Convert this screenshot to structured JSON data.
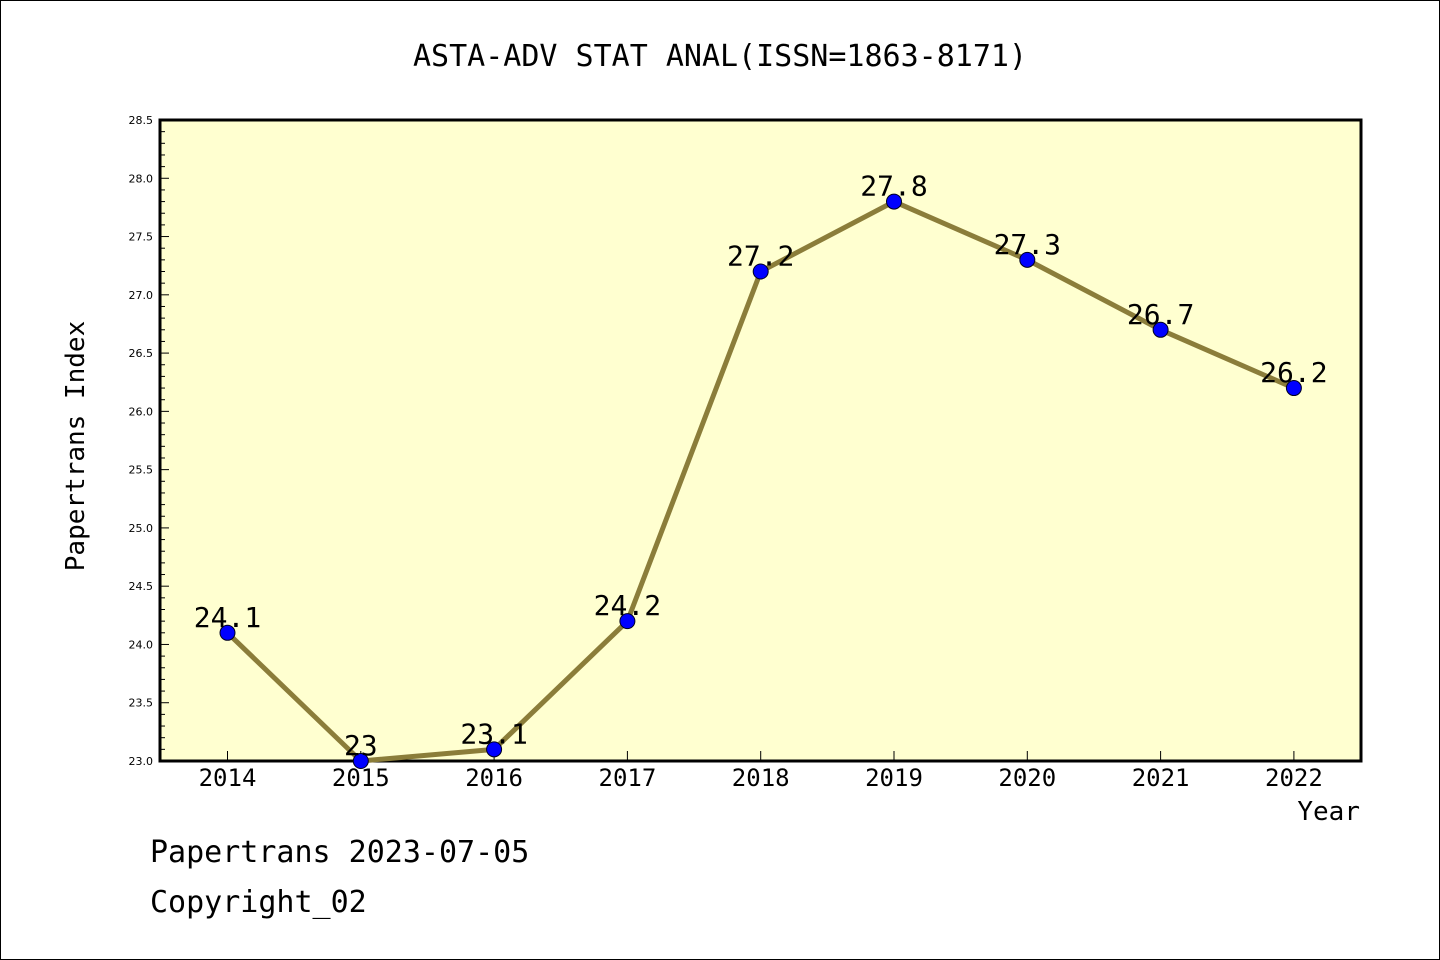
{
  "chart_data": {
    "type": "line",
    "title": "ASTA-ADV STAT ANAL(ISSN=1863-8171)",
    "xlabel": "Year",
    "ylabel": "Papertrans Index",
    "categories": [
      "2014",
      "2015",
      "2016",
      "2017",
      "2018",
      "2019",
      "2020",
      "2021",
      "2022"
    ],
    "series": [
      {
        "values": [
          24.1,
          23.0,
          23.1,
          24.2,
          27.2,
          27.8,
          27.3,
          26.7,
          26.2
        ],
        "labels": [
          "24.1",
          "23",
          "23.1",
          "24.2",
          "27.2",
          "27.8",
          "27.3",
          "26.7",
          "26.2"
        ]
      }
    ],
    "ylim": [
      23.0,
      28.5
    ],
    "yticks": [
      "23.0",
      "23.5",
      "24.0",
      "24.5",
      "25.0",
      "25.5",
      "26.0",
      "26.5",
      "27.0",
      "27.5",
      "28.0",
      "28.5"
    ],
    "grid": false,
    "colors": {
      "plot_background": "#ffffd0",
      "line": "#8b7d3a",
      "marker": "#0000ff"
    }
  },
  "footer": {
    "line1": "Papertrans 2023-07-05",
    "line2": "Copyright_02"
  }
}
